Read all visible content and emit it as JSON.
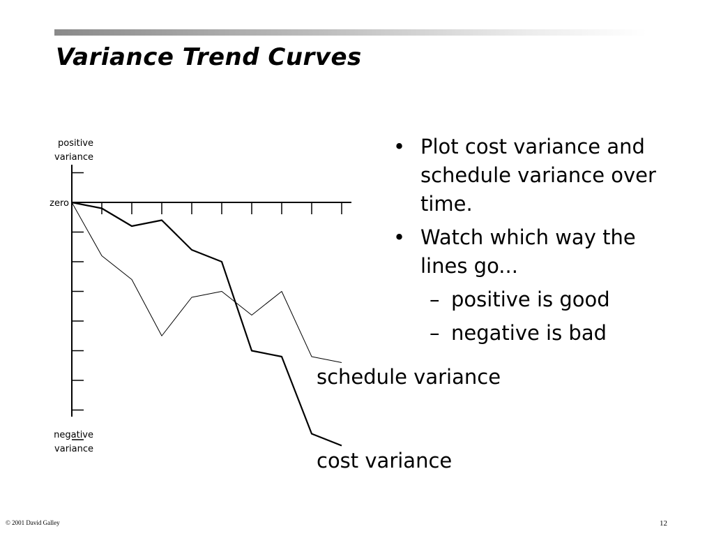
{
  "slide": {
    "title": "Variance Trend Curves",
    "footer_left": "© 2001 David Galley",
    "page_number": "12"
  },
  "bullets": [
    {
      "text": "Plot cost variance and schedule variance over time.",
      "level": 1
    },
    {
      "text": "Watch which way the lines go...",
      "level": 1
    },
    {
      "text": "positive is good",
      "level": 2
    },
    {
      "text": "negative is bad",
      "level": 2
    }
  ],
  "bullet_marks": {
    "level1": "•",
    "level2": "–"
  },
  "chart_data": {
    "type": "line",
    "title": "",
    "ylabel_top_line1": "positive",
    "ylabel_top_line2": "variance",
    "ylabel_bottom_line1": "negative",
    "ylabel_bottom_line2": "variance",
    "zero_label": "zero",
    "x": [
      0,
      1,
      2,
      3,
      4,
      5,
      6,
      7,
      8,
      9
    ],
    "ylim": [
      -8,
      1
    ],
    "series": [
      {
        "name": "schedule variance",
        "values": [
          0,
          -1.8,
          -2.6,
          -4.5,
          -3.2,
          -3.0,
          -3.8,
          -3.0,
          -5.2,
          -5.4
        ],
        "color": "#000000",
        "weight": "thin"
      },
      {
        "name": "cost variance",
        "values": [
          0,
          -0.2,
          -0.8,
          -0.6,
          -1.6,
          -2.0,
          -5.0,
          -5.2,
          -7.8,
          -8.2
        ],
        "color": "#000000",
        "weight": "thick"
      }
    ],
    "grid": false,
    "legend": "direct labels at line ends"
  }
}
